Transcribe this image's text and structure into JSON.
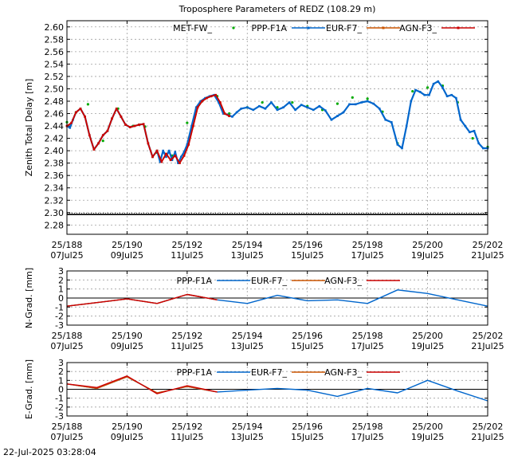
{
  "timestamp": "22-Jul-2025 03:28:04",
  "chart_data": [
    {
      "type": "line",
      "title": "Troposphere Parameters of REDZ (108.29 m)",
      "ylabel": "Zenith Total Delay [m]",
      "xlabel": "",
      "xlim": [
        188,
        202
      ],
      "ylim": [
        2.265,
        2.61
      ],
      "yticks": [
        2.28,
        2.3,
        2.32,
        2.34,
        2.36,
        2.38,
        2.4,
        2.42,
        2.44,
        2.46,
        2.48,
        2.5,
        2.52,
        2.54,
        2.56,
        2.58,
        2.6
      ],
      "xticks": [
        {
          "v": 188,
          "l1": "25/188",
          "l2": "07Jul25"
        },
        {
          "v": 190,
          "l1": "25/190",
          "l2": "09Jul25"
        },
        {
          "v": 192,
          "l1": "25/192",
          "l2": "11Jul25"
        },
        {
          "v": 194,
          "l1": "25/194",
          "l2": "13Jul25"
        },
        {
          "v": 196,
          "l1": "25/196",
          "l2": "15Jul25"
        },
        {
          "v": 198,
          "l1": "25/198",
          "l2": "17Jul25"
        },
        {
          "v": 200,
          "l1": "25/200",
          "l2": "19Jul25"
        },
        {
          "v": 202,
          "l1": "25/202",
          "l2": "21Jul25"
        }
      ],
      "legend": [
        "MET-FW_",
        "PPP-F1A",
        "EUR-F7_",
        "AGN-F3_"
      ],
      "series": [
        {
          "name": "MET-FW_",
          "color": "#00aa00",
          "style": "points",
          "value": 2.297,
          "x": [
            188,
            188.3,
            188.7,
            189.2,
            189.7,
            190.2,
            190.6,
            191.0,
            191.5,
            192.0,
            192.5,
            193.0,
            193.4,
            194.0,
            194.5,
            195.0,
            195.5,
            196.0,
            196.5,
            197.0,
            197.5,
            198.0,
            198.5,
            199.0,
            199.5,
            200.0,
            200.5,
            201.0,
            201.5,
            202.0
          ],
          "y": [
            2.446,
            2.462,
            2.475,
            2.416,
            2.468,
            2.44,
            2.439,
            2.397,
            2.392,
            2.445,
            2.48,
            2.488,
            2.46,
            2.47,
            2.478,
            2.47,
            2.478,
            2.472,
            2.466,
            2.476,
            2.486,
            2.484,
            2.463,
            2.412,
            2.496,
            2.502,
            2.505,
            2.478,
            2.42,
            2.406
          ]
        },
        {
          "name": "PPP-F1A",
          "color": "#0066cc",
          "style": "line",
          "x": [
            188,
            188.1,
            188.2,
            188.3,
            188.45,
            188.6,
            188.75,
            188.9,
            189.05,
            189.2,
            189.35,
            189.5,
            189.65,
            189.8,
            189.95,
            190.1,
            190.25,
            190.4,
            190.55,
            190.7,
            190.85,
            191.0,
            191.1,
            191.2,
            191.3,
            191.4,
            191.5,
            191.6,
            191.7,
            191.8,
            191.9,
            192.0,
            192.15,
            192.3,
            192.45,
            192.6,
            192.75,
            192.9,
            193.05,
            193.2,
            193.35,
            193.5,
            193.65,
            193.8,
            194.0,
            194.2,
            194.4,
            194.6,
            194.8,
            195.0,
            195.2,
            195.4,
            195.6,
            195.8,
            196.0,
            196.2,
            196.4,
            196.6,
            196.8,
            197.0,
            197.2,
            197.4,
            197.6,
            197.8,
            198.0,
            198.2,
            198.4,
            198.6,
            198.8,
            199.0,
            199.15,
            199.3,
            199.45,
            199.6,
            199.75,
            199.9,
            200.05,
            200.2,
            200.35,
            200.5,
            200.65,
            200.8,
            200.95,
            201.1,
            201.25,
            201.4,
            201.55,
            201.7,
            201.85,
            202.0
          ],
          "y": [
            2.44,
            2.437,
            2.45,
            2.462,
            2.468,
            2.455,
            2.425,
            2.402,
            2.412,
            2.425,
            2.432,
            2.452,
            2.468,
            2.455,
            2.442,
            2.438,
            2.44,
            2.442,
            2.443,
            2.412,
            2.39,
            2.4,
            2.382,
            2.4,
            2.39,
            2.4,
            2.385,
            2.398,
            2.38,
            2.39,
            2.398,
            2.41,
            2.44,
            2.47,
            2.48,
            2.485,
            2.488,
            2.49,
            2.478,
            2.46,
            2.458,
            2.455,
            2.462,
            2.468,
            2.47,
            2.466,
            2.472,
            2.468,
            2.478,
            2.466,
            2.47,
            2.478,
            2.466,
            2.474,
            2.47,
            2.466,
            2.472,
            2.465,
            2.45,
            2.456,
            2.462,
            2.475,
            2.475,
            2.478,
            2.48,
            2.476,
            2.468,
            2.45,
            2.446,
            2.41,
            2.404,
            2.44,
            2.48,
            2.498,
            2.495,
            2.49,
            2.49,
            2.508,
            2.512,
            2.502,
            2.488,
            2.49,
            2.485,
            2.45,
            2.44,
            2.43,
            2.432,
            2.412,
            2.404,
            2.404
          ]
        },
        {
          "name": "EUR-F7_",
          "color": "#cc5500",
          "style": "linemarks",
          "x": [
            188,
            188.15,
            188.3,
            188.45,
            188.6,
            188.75,
            188.9,
            189.05,
            189.2,
            189.35,
            189.5,
            189.65,
            189.8,
            189.95,
            190.1,
            190.25,
            190.4,
            190.55,
            190.7,
            190.85,
            191.0,
            191.15,
            191.3,
            191.45,
            191.6,
            191.75,
            191.9,
            192.05,
            192.2,
            192.35,
            192.5,
            192.65,
            192.8,
            192.95,
            193.1,
            193.25,
            193.4
          ],
          "y": [
            2.44,
            2.445,
            2.462,
            2.468,
            2.455,
            2.425,
            2.402,
            2.412,
            2.425,
            2.432,
            2.452,
            2.468,
            2.455,
            2.442,
            2.438,
            2.44,
            2.442,
            2.443,
            2.412,
            2.39,
            2.4,
            2.382,
            2.395,
            2.385,
            2.392,
            2.38,
            2.392,
            2.41,
            2.44,
            2.47,
            2.48,
            2.485,
            2.488,
            2.49,
            2.478,
            2.46,
            2.456
          ]
        },
        {
          "name": "AGN-F3_",
          "color": "#cc0000",
          "style": "line",
          "x": [
            188,
            188.15,
            188.3,
            188.45,
            188.6,
            188.75,
            188.9,
            189.05,
            189.2,
            189.35,
            189.5,
            189.65,
            189.8,
            189.95,
            190.1,
            190.25,
            190.4,
            190.55,
            190.7,
            190.85,
            191.0,
            191.15,
            191.3,
            191.45,
            191.6,
            191.75,
            191.9,
            192.05,
            192.2,
            192.35,
            192.5,
            192.65,
            192.8,
            192.95,
            193.1,
            193.25,
            193.4
          ],
          "y": [
            2.44,
            2.445,
            2.462,
            2.468,
            2.455,
            2.425,
            2.402,
            2.412,
            2.425,
            2.432,
            2.452,
            2.468,
            2.455,
            2.442,
            2.438,
            2.44,
            2.442,
            2.443,
            2.412,
            2.39,
            2.4,
            2.382,
            2.395,
            2.385,
            2.392,
            2.38,
            2.392,
            2.41,
            2.44,
            2.47,
            2.48,
            2.485,
            2.488,
            2.49,
            2.478,
            2.46,
            2.456
          ]
        }
      ]
    },
    {
      "type": "line",
      "title": "",
      "ylabel": "N-Grad. [mm]",
      "xlim": [
        188,
        202
      ],
      "ylim": [
        -3,
        3
      ],
      "yticks": [
        -3,
        -2,
        -1,
        0,
        1,
        2,
        3
      ],
      "legend": [
        "PPP-F1A",
        "EUR-F7_",
        "AGN-F3_"
      ],
      "series": [
        {
          "name": "PPP-F1A",
          "color": "#0066cc",
          "x": [
            188,
            189,
            190,
            191,
            192,
            193,
            194,
            195,
            196,
            197,
            198,
            199,
            200,
            201,
            202
          ],
          "y": [
            -0.9,
            -0.5,
            -0.1,
            -0.6,
            0.4,
            -0.2,
            -0.6,
            0.3,
            -0.3,
            -0.2,
            -0.6,
            0.9,
            0.5,
            -0.2,
            -0.9
          ]
        },
        {
          "name": "EUR-F7_",
          "color": "#cc5500",
          "x": [
            188,
            189,
            190,
            191,
            192,
            193
          ],
          "y": [
            -0.9,
            -0.5,
            -0.1,
            -0.6,
            0.4,
            -0.2
          ]
        },
        {
          "name": "AGN-F3_",
          "color": "#cc0000",
          "x": [
            188,
            189,
            190,
            191,
            192,
            193
          ],
          "y": [
            -0.9,
            -0.5,
            -0.1,
            -0.6,
            0.4,
            -0.2
          ]
        }
      ]
    },
    {
      "type": "line",
      "title": "",
      "ylabel": "E-Grad. [mm]",
      "xlim": [
        188,
        202
      ],
      "ylim": [
        -3,
        3
      ],
      "yticks": [
        -3,
        -2,
        -1,
        0,
        1,
        2,
        3
      ],
      "legend": [
        "PPP-F1A",
        "EUR-F7_",
        "AGN-F3_"
      ],
      "series": [
        {
          "name": "PPP-F1A",
          "color": "#0066cc",
          "x": [
            188,
            189,
            190,
            191,
            192,
            193,
            194,
            195,
            196,
            197,
            198,
            199,
            200,
            201,
            202
          ],
          "y": [
            0.6,
            0.1,
            1.4,
            -0.4,
            0.3,
            -0.3,
            -0.1,
            0.1,
            -0.1,
            -0.8,
            0.1,
            -0.4,
            1.0,
            -0.2,
            -1.3
          ]
        },
        {
          "name": "EUR-F7_",
          "color": "#cc5500",
          "x": [
            188,
            189,
            190,
            191,
            192,
            193
          ],
          "y": [
            0.6,
            0.1,
            1.4,
            -0.4,
            0.3,
            -0.3
          ]
        },
        {
          "name": "AGN-F3_",
          "color": "#cc0000",
          "x": [
            188,
            189,
            190,
            191,
            192,
            193
          ],
          "y": [
            0.6,
            0.2,
            1.5,
            -0.5,
            0.4,
            -0.3
          ]
        }
      ]
    }
  ]
}
